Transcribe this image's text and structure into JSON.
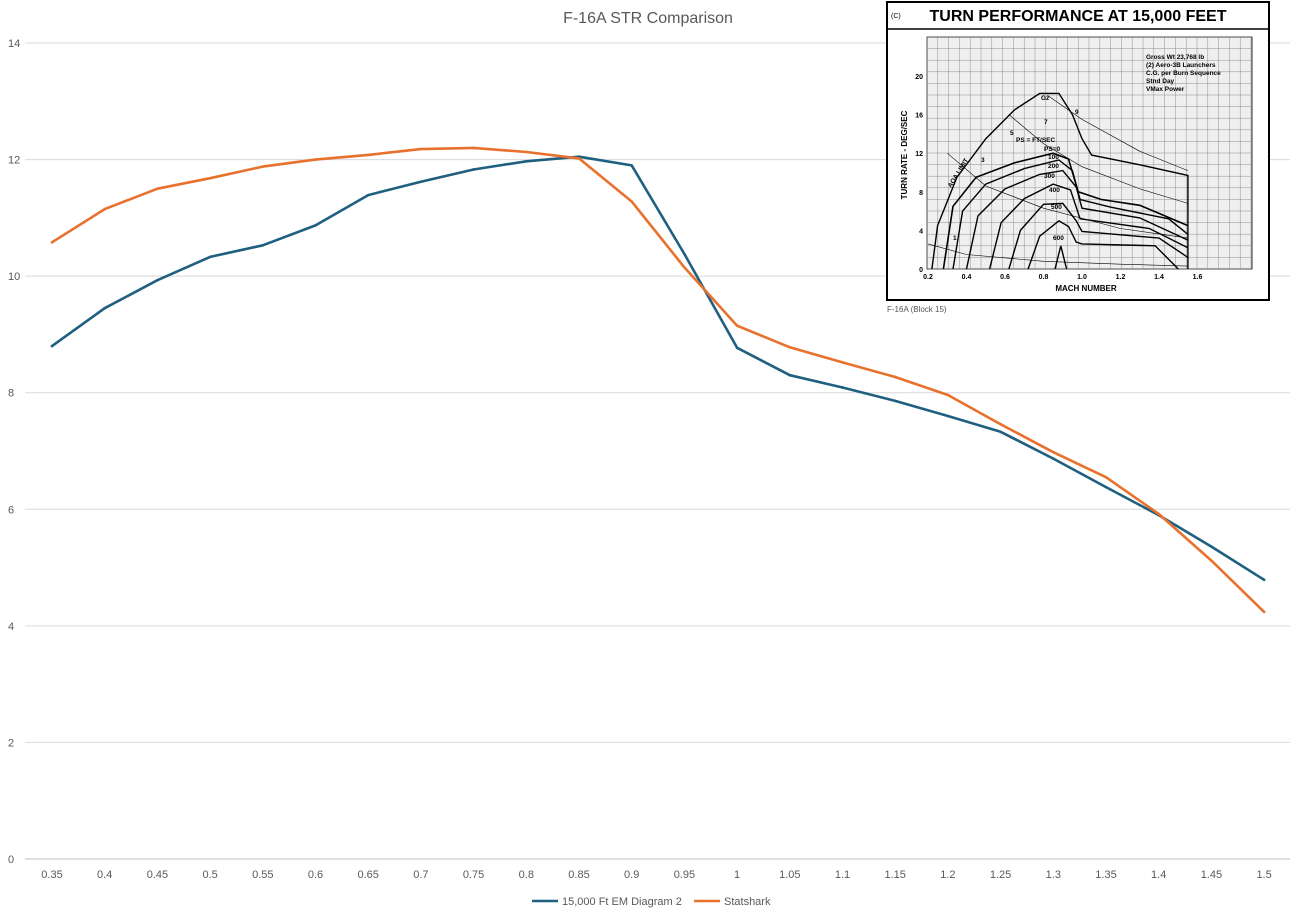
{
  "chart_data": {
    "type": "line",
    "title": "F-16A STR Comparison",
    "xlabel": "",
    "ylabel": "",
    "categories": [
      "0.35",
      "0.4",
      "0.45",
      "0.5",
      "0.55",
      "0.6",
      "0.65",
      "0.7",
      "0.75",
      "0.8",
      "0.85",
      "0.9",
      "0.95",
      "1",
      "1.05",
      "1.1",
      "1.15",
      "1.2",
      "1.25",
      "1.3",
      "1.35",
      "1.4",
      "1.45",
      "1.5"
    ],
    "ylim": [
      0,
      14
    ],
    "yticks": [
      0,
      2,
      4,
      6,
      8,
      10,
      12,
      14
    ],
    "grid": "horizontal",
    "legend_position": "bottom",
    "series": [
      {
        "name": "15,000 Ft EM Diagram 2",
        "color": "#1f5f80",
        "values": [
          8.8,
          9.45,
          9.93,
          10.33,
          10.53,
          10.87,
          11.39,
          11.62,
          11.83,
          11.97,
          12.05,
          11.9,
          10.38,
          8.77,
          8.3,
          8.09,
          7.86,
          7.6,
          7.33,
          6.87,
          6.38,
          5.9,
          5.36,
          4.79
        ]
      },
      {
        "name": "Statshark",
        "color": "#e8712d",
        "values": [
          10.58,
          11.15,
          11.5,
          11.68,
          11.88,
          12.0,
          12.08,
          12.18,
          12.2,
          12.13,
          12.02,
          11.28,
          10.15,
          9.15,
          8.78,
          8.52,
          8.27,
          7.96,
          7.46,
          6.98,
          6.55,
          5.92,
          5.12,
          4.24
        ]
      }
    ]
  },
  "inset": {
    "corner_mark": "(C)",
    "heading": "TURN PERFORMANCE AT 15,000 FEET",
    "y_axis_label": "TURN RATE - DEG/SEC",
    "x_axis_label": "MACH NUMBER",
    "y_ticks": [
      "0",
      "4",
      "8",
      "12",
      "16",
      "20"
    ],
    "x_ticks": [
      "0.2",
      "0.4",
      "0.6",
      "0.8",
      "1.0",
      "1.2",
      "1.4",
      "1.6"
    ],
    "notes": [
      "Gross Wt 23,768 lb",
      "(2) Aero-3B Launchers",
      "C.G. per Burn Sequence",
      "Stnd Day",
      "VMax Power"
    ],
    "curve_labels": [
      "Gz",
      "7",
      "9",
      "5",
      "3",
      "1",
      "PS = FT/SEC",
      "PS=0",
      "100",
      "200",
      "300",
      "400",
      "500",
      "600",
      "AOA LIMIT"
    ],
    "caption": "F-16A (Block 15)"
  }
}
